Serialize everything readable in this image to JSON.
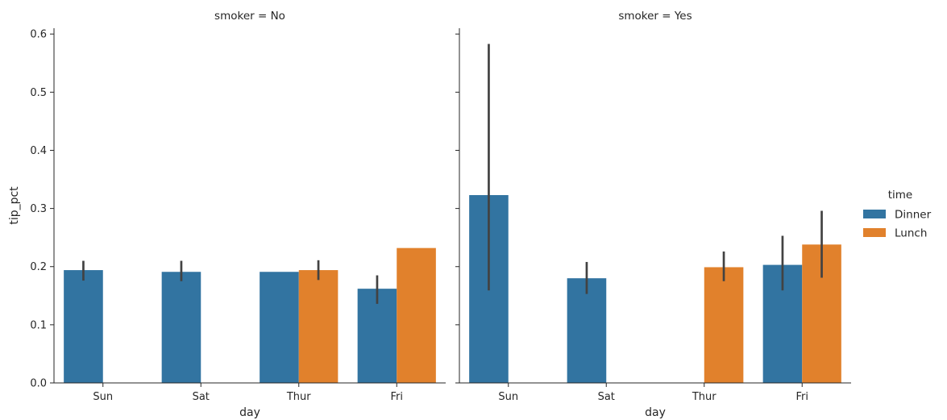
{
  "chart_data": {
    "type": "bar",
    "facet_by": "smoker",
    "hue": "time",
    "categories": [
      "Sun",
      "Sat",
      "Thur",
      "Fri"
    ],
    "xlabel": "day",
    "ylabel": "tip_pct",
    "ylim": [
      0,
      0.61
    ],
    "yticks": [
      "0.0",
      "0.1",
      "0.2",
      "0.3",
      "0.4",
      "0.5",
      "0.6"
    ],
    "legend": {
      "title": "time",
      "placement": "right",
      "entries": [
        {
          "name": "Dinner",
          "color": "#3274a1"
        },
        {
          "name": "Lunch",
          "color": "#e1812c"
        }
      ]
    },
    "errorbar_color": "#424242",
    "panels": [
      {
        "title": "smoker = No",
        "series": [
          {
            "name": "Dinner",
            "values": [
              0.194,
              0.191,
              0.191,
              0.162
            ],
            "ci_low": [
              0.176,
              0.175,
              null,
              0.136
            ],
            "ci_high": [
              0.21,
              0.21,
              null,
              0.185
            ]
          },
          {
            "name": "Lunch",
            "values": [
              null,
              null,
              0.194,
              0.232
            ],
            "ci_low": [
              null,
              null,
              0.177,
              null
            ],
            "ci_high": [
              null,
              null,
              0.211,
              null
            ]
          }
        ]
      },
      {
        "title": "smoker = Yes",
        "series": [
          {
            "name": "Dinner",
            "values": [
              0.323,
              0.18,
              null,
              0.203
            ],
            "ci_low": [
              0.159,
              0.153,
              null,
              0.159
            ],
            "ci_high": [
              0.583,
              0.208,
              null,
              0.253
            ]
          },
          {
            "name": "Lunch",
            "values": [
              null,
              null,
              0.199,
              0.238
            ],
            "ci_low": [
              null,
              null,
              0.175,
              0.181
            ],
            "ci_high": [
              null,
              null,
              0.226,
              0.296
            ]
          }
        ]
      }
    ]
  }
}
